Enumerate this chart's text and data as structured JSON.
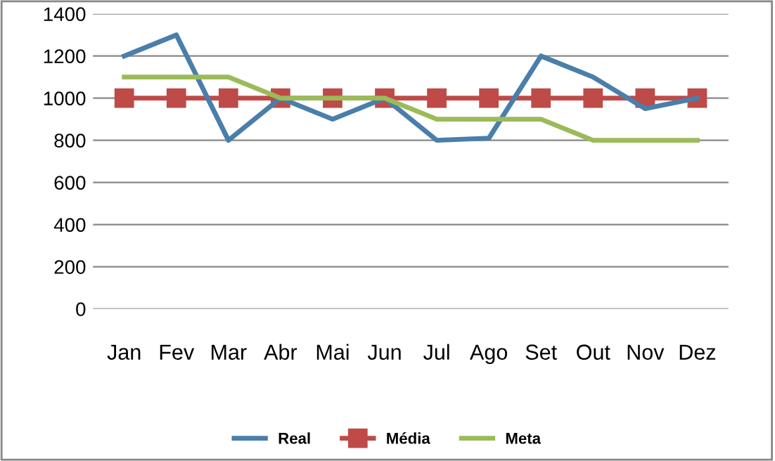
{
  "chart_data": {
    "type": "line",
    "categories": [
      "Jan",
      "Fev",
      "Mar",
      "Abr",
      "Mai",
      "Jun",
      "Jul",
      "Ago",
      "Set",
      "Out",
      "Nov",
      "Dez"
    ],
    "series": [
      {
        "name": "Real",
        "color": "#4a7eab",
        "values": [
          1200,
          1300,
          800,
          1000,
          900,
          1000,
          800,
          810,
          1200,
          1100,
          950,
          1000
        ]
      },
      {
        "name": "Média",
        "color": "#be4b48",
        "marker": "square",
        "values": [
          1000,
          1000,
          1000,
          1000,
          1000,
          1000,
          1000,
          1000,
          1000,
          1000,
          1000,
          1000
        ]
      },
      {
        "name": "Meta",
        "color": "#9bbb59",
        "values": [
          1100,
          1100,
          1100,
          1000,
          1000,
          1000,
          900,
          900,
          900,
          800,
          800,
          800
        ]
      }
    ],
    "ylim": [
      0,
      1400
    ],
    "yticks": [
      0,
      200,
      400,
      600,
      800,
      1000,
      1200,
      1400
    ],
    "grid": "y",
    "legend": "bottom",
    "marker": "none"
  }
}
